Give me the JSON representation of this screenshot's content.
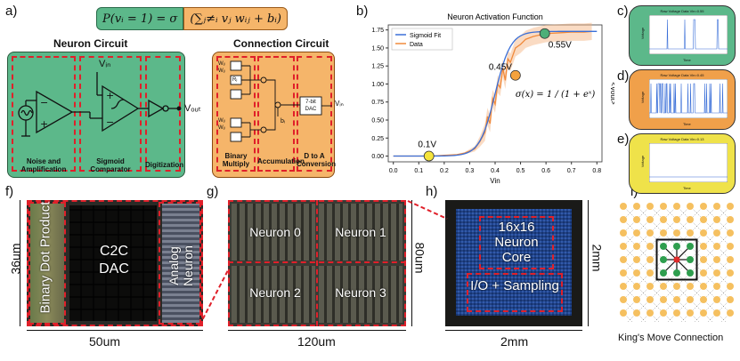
{
  "panel_labels": {
    "a": "a)",
    "b": "b)",
    "c": "c)",
    "d": "d)",
    "e": "e)",
    "f": "f)",
    "g": "g)",
    "h": "h)",
    "i": "i)"
  },
  "formula": {
    "lhs": "P(vᵢ = 1) = σ",
    "rhs": "(∑ⱼ≠ᵢ vⱼ wᵢⱼ + bᵢ)"
  },
  "neuron_circuit": {
    "title": "Neuron Circuit",
    "vin": "Vᵢₙ",
    "vout": "Vₒᵤₜ",
    "stages": [
      "Noise and Amplification",
      "Sigmoid Comparator",
      "Digitization"
    ]
  },
  "connection_circuit": {
    "title": "Connection Circuit",
    "weight_label": "Wᵢⱼ",
    "reg_label": "Rⱼ",
    "bias_label": "bᵢ",
    "dac_label": "7-bit DAC",
    "out_label": "Vᵢₙ",
    "stages": [
      "Binary Multiply",
      "Accumulation",
      "D to A Conversion"
    ]
  },
  "chart_data": {
    "type": "line",
    "title": "Neuron Activation Function",
    "xlabel": "Vin",
    "ylabel": "<Vout>",
    "xlim": [
      -0.02,
      0.82
    ],
    "ylim": [
      -0.08,
      1.82
    ],
    "xticks": [
      0.0,
      0.1,
      0.2,
      0.3,
      0.4,
      0.5,
      0.6,
      0.7,
      0.8
    ],
    "yticks": [
      0.0,
      0.25,
      0.5,
      0.75,
      1.0,
      1.25,
      1.5,
      1.75
    ],
    "legend": [
      "Sigmoid Fit",
      "Data"
    ],
    "sigmoid": {
      "L": 1.73,
      "k": 33,
      "x0": 0.4
    },
    "series": [
      {
        "name": "Sigmoid Fit",
        "color": "#3a6fd8"
      },
      {
        "name": "Data",
        "color": "#f08a3c",
        "x": [
          0.0,
          0.05,
          0.1,
          0.15,
          0.2,
          0.25,
          0.28,
          0.3,
          0.32,
          0.34,
          0.36,
          0.37,
          0.38,
          0.39,
          0.4,
          0.41,
          0.42,
          0.43,
          0.44,
          0.45,
          0.46,
          0.47,
          0.48,
          0.5,
          0.52,
          0.55,
          0.6,
          0.65,
          0.7,
          0.75,
          0.78
        ],
        "y": [
          0.0,
          0.0,
          0.0,
          0.0,
          0.01,
          0.02,
          0.04,
          0.07,
          0.1,
          0.2,
          0.33,
          0.55,
          0.45,
          0.8,
          0.72,
          1.0,
          0.95,
          1.22,
          1.05,
          1.35,
          1.3,
          1.4,
          1.5,
          1.55,
          1.62,
          1.66,
          1.7,
          1.71,
          1.72,
          1.72,
          1.73
        ]
      }
    ],
    "markers": [
      {
        "x": 0.14,
        "y": 0.0,
        "label": "0.1V",
        "color": "#f5e43c"
      },
      {
        "x": 0.48,
        "y": 1.12,
        "label": "0.45V",
        "color": "#f5a23c"
      },
      {
        "x": 0.595,
        "y": 1.7,
        "label": "0.55V",
        "color": "#4caf78"
      }
    ],
    "annotation": "σ(x) = 1 / (1 + eˣ)"
  },
  "mini_plots": [
    {
      "title": "Raw Voltage Data Vin=0.55",
      "ylabel": "Voltage",
      "xlabel": "Time",
      "bg": "#5cb88a"
    },
    {
      "title": "Raw Voltage Data Vin=0.45",
      "ylabel": "Voltage",
      "xlabel": "Time",
      "bg": "#f0a04a"
    },
    {
      "title": "Raw Voltage Data Vin=0.13",
      "ylabel": "Voltage",
      "xlabel": "Time",
      "bg": "#efe24a"
    }
  ],
  "chip_f": {
    "labels": [
      "Binary Dot Product",
      "C2C DAC",
      "Analog Neuron"
    ],
    "width": "50um",
    "height": "36um"
  },
  "chip_g": {
    "labels": [
      "Neuron 0",
      "Neuron 1",
      "Neuron 2",
      "Neuron 3"
    ],
    "width": "120um",
    "height": "80um"
  },
  "chip_h": {
    "labels": [
      "16x16 Neuron Core",
      "I/O + Sampling"
    ],
    "width": "2mm",
    "height": "2mm"
  },
  "kings_move": {
    "caption": "King's Move Connection"
  }
}
